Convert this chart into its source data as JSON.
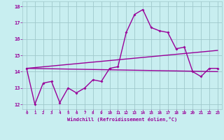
{
  "xlabel": "Windchill (Refroidissement éolien,°C)",
  "xlim": [
    -0.5,
    23.5
  ],
  "ylim": [
    11.7,
    18.3
  ],
  "xticks": [
    0,
    1,
    2,
    3,
    4,
    5,
    6,
    7,
    8,
    9,
    10,
    11,
    12,
    13,
    14,
    15,
    16,
    17,
    18,
    19,
    20,
    21,
    22,
    23
  ],
  "yticks": [
    12,
    13,
    14,
    15,
    16,
    17,
    18
  ],
  "background_color": "#c8eef0",
  "line_color": "#990099",
  "grid_color": "#a0c8cc",
  "series1_x": [
    0,
    1,
    2,
    3,
    4,
    5,
    6,
    7,
    8,
    9,
    10,
    11,
    12,
    13,
    14,
    15,
    16,
    17,
    18,
    19,
    20,
    21,
    22,
    23
  ],
  "series1_y": [
    14.2,
    12.0,
    13.3,
    13.4,
    12.1,
    13.0,
    12.7,
    13.0,
    13.5,
    13.4,
    14.2,
    14.3,
    16.4,
    17.5,
    17.8,
    16.7,
    16.5,
    16.4,
    15.4,
    15.5,
    14.0,
    13.7,
    14.2,
    14.2
  ],
  "series2_x": [
    0,
    23
  ],
  "series2_y": [
    14.2,
    15.3
  ],
  "series3_x": [
    0,
    23
  ],
  "series3_y": [
    14.2,
    14.0
  ]
}
